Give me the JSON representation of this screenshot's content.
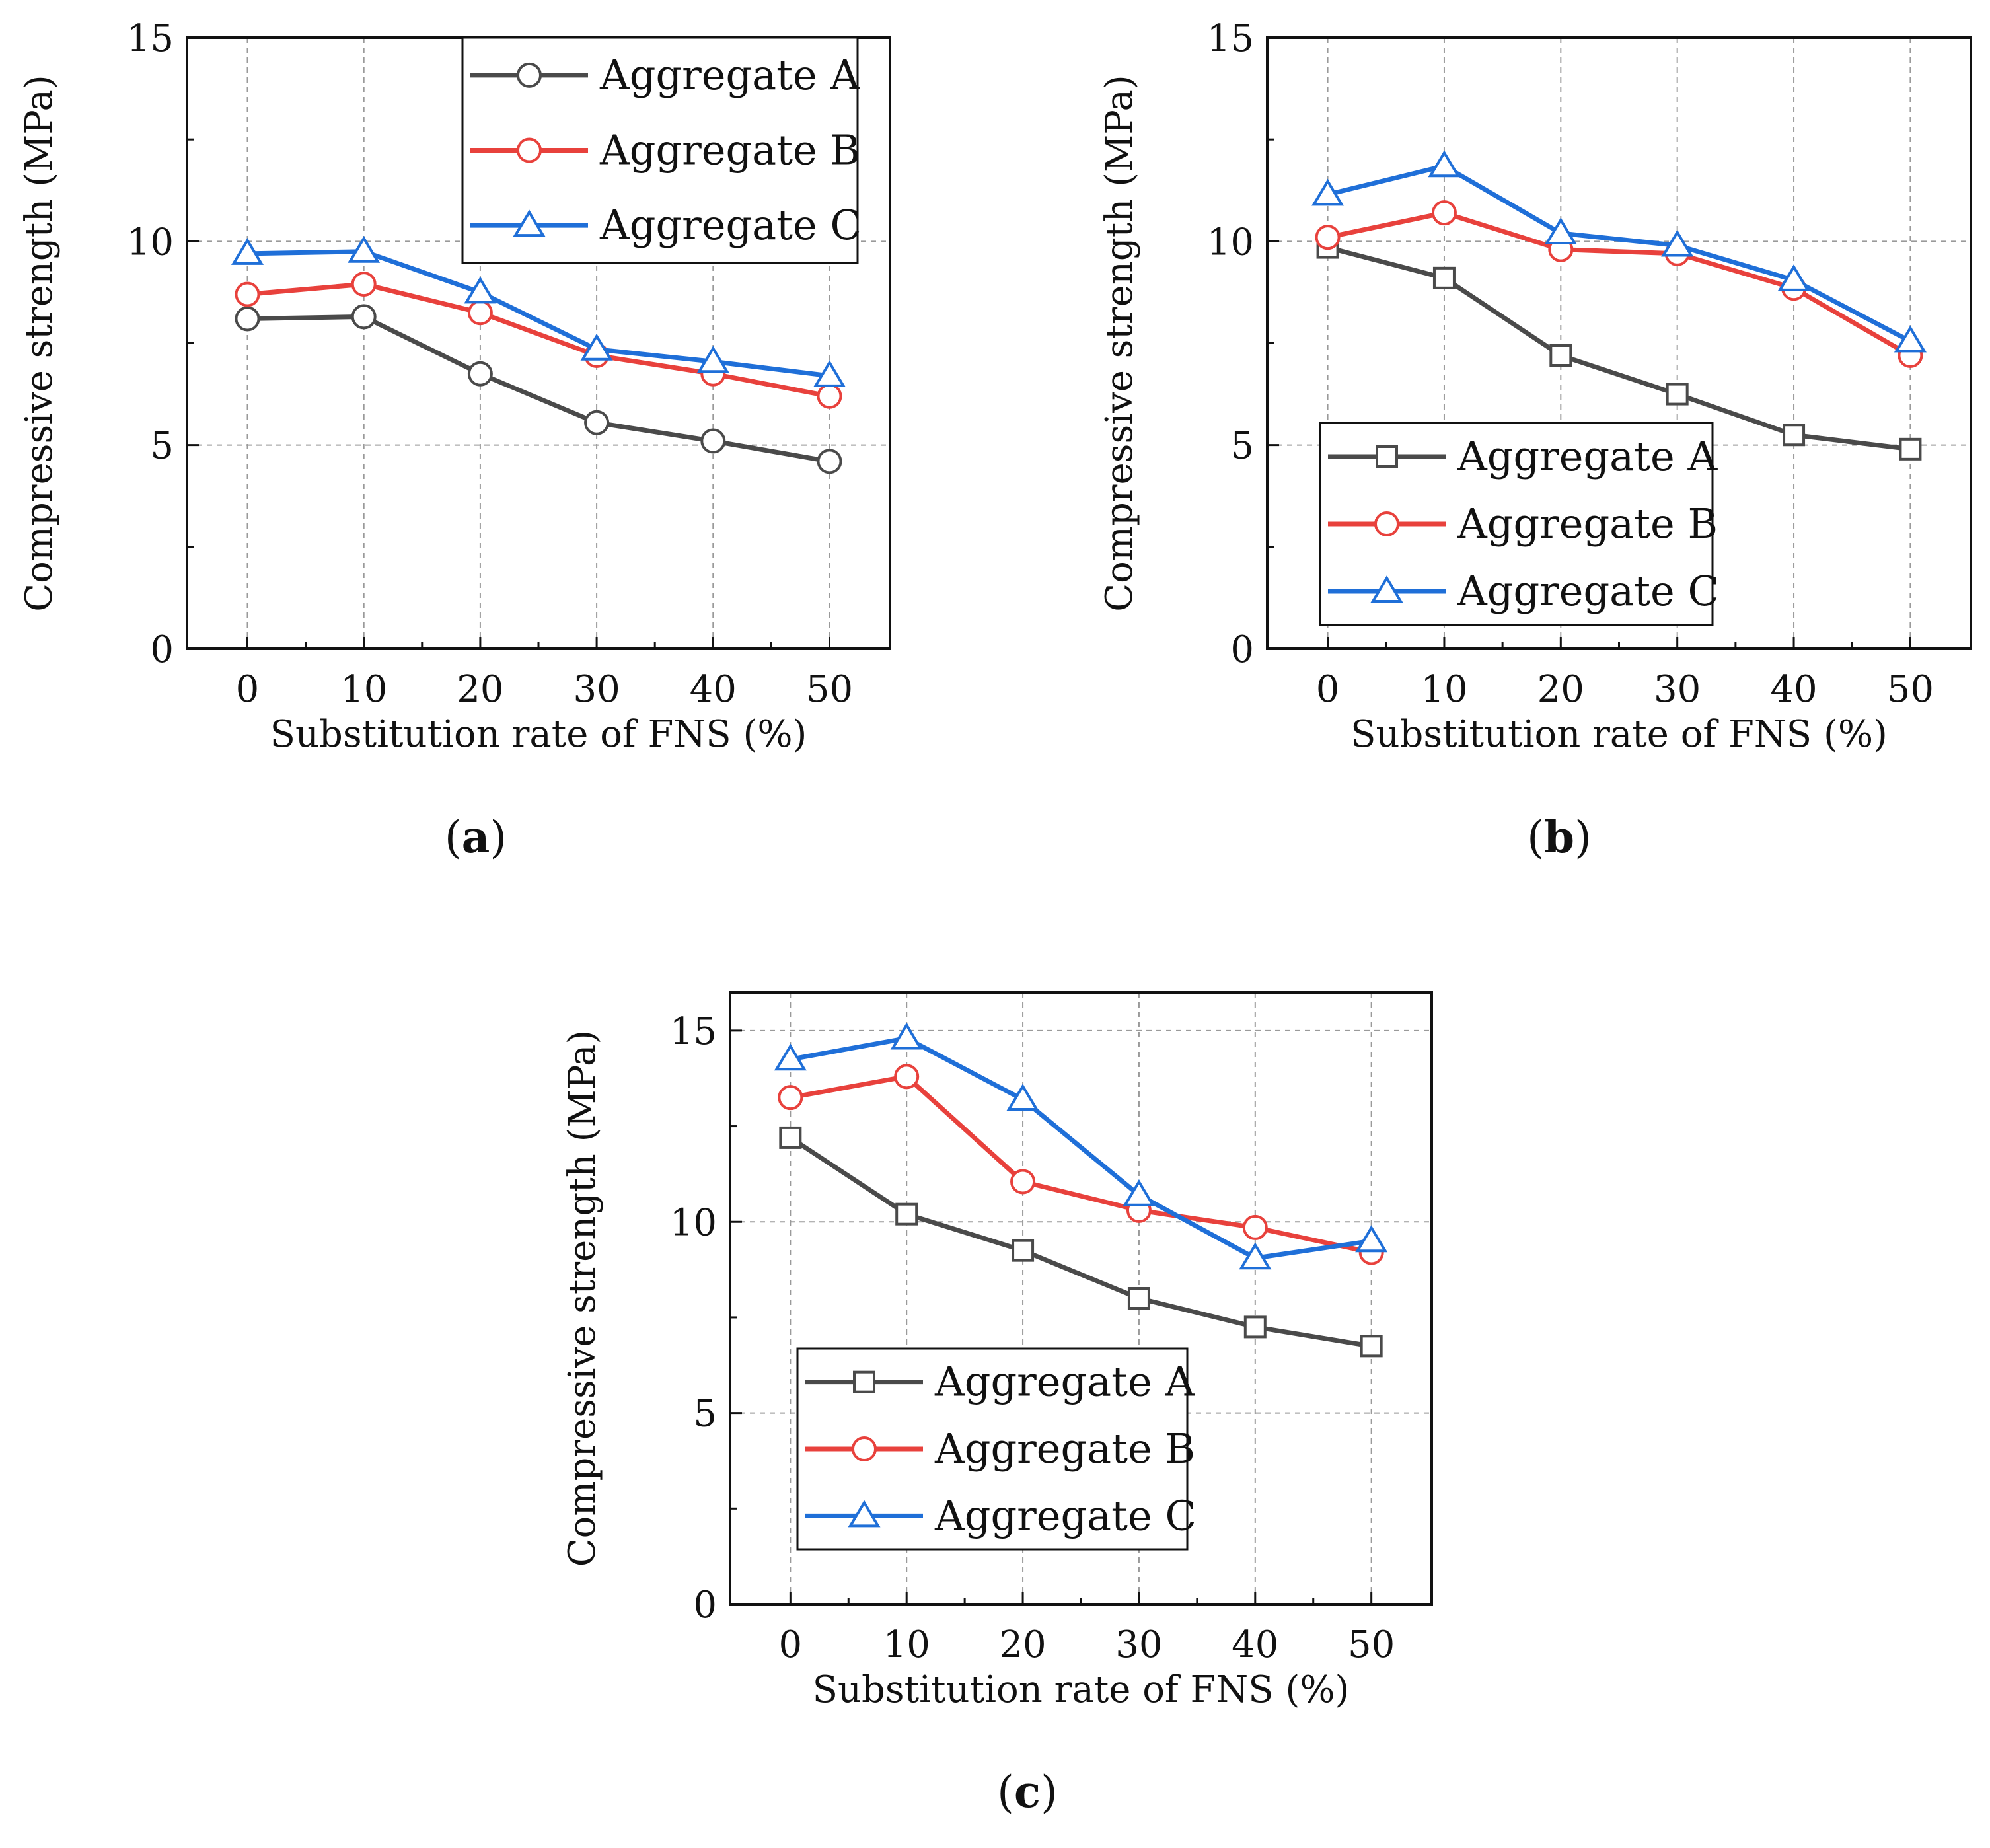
{
  "chart_data": [
    {
      "type": "line",
      "panel_label": "a",
      "xlabel": "Substitution rate of FNS (%)",
      "ylabel": "Compressive strength (MPa)",
      "x": [
        0,
        10,
        20,
        30,
        40,
        50
      ],
      "xticks": [
        "0",
        "10",
        "20",
        "30",
        "40",
        "50"
      ],
      "ylim": [
        0,
        15
      ],
      "yticks": [
        "0",
        "5",
        "10",
        "15"
      ],
      "grid": true,
      "legend_position": "top-right",
      "series": [
        {
          "name": "Aggregate A",
          "marker": "circle",
          "color": "#4a4a4a",
          "values": [
            8.1,
            8.15,
            6.75,
            5.55,
            5.1,
            4.6
          ]
        },
        {
          "name": "Aggregate B",
          "marker": "circle",
          "color": "#e8413c",
          "values": [
            8.7,
            8.95,
            8.25,
            7.2,
            6.75,
            6.2
          ]
        },
        {
          "name": "Aggregate C",
          "marker": "triangle",
          "color": "#1f6fd8",
          "values": [
            9.7,
            9.75,
            8.75,
            7.35,
            7.05,
            6.7
          ]
        }
      ]
    },
    {
      "type": "line",
      "panel_label": "b",
      "xlabel": "Substitution rate of FNS (%)",
      "ylabel": "Compressive strength (MPa)",
      "x": [
        0,
        10,
        20,
        30,
        40,
        50
      ],
      "xticks": [
        "0",
        "10",
        "20",
        "30",
        "40",
        "50"
      ],
      "ylim": [
        0,
        15
      ],
      "yticks": [
        "0",
        "5",
        "10",
        "15"
      ],
      "grid": true,
      "legend_position": "bottom-left",
      "series": [
        {
          "name": "Aggregate A",
          "marker": "square",
          "color": "#4a4a4a",
          "values": [
            9.85,
            9.1,
            7.2,
            6.25,
            5.25,
            4.9
          ]
        },
        {
          "name": "Aggregate B",
          "marker": "circle",
          "color": "#e8413c",
          "values": [
            10.1,
            10.7,
            9.8,
            9.7,
            8.85,
            7.2
          ]
        },
        {
          "name": "Aggregate C",
          "marker": "triangle",
          "color": "#1f6fd8",
          "values": [
            11.15,
            11.85,
            10.2,
            9.9,
            9.05,
            7.55
          ]
        }
      ]
    },
    {
      "type": "line",
      "panel_label": "c",
      "xlabel": "Substitution rate of FNS (%)",
      "ylabel": "Compressive strength (MPa)",
      "x": [
        0,
        10,
        20,
        30,
        40,
        50
      ],
      "xticks": [
        "0",
        "10",
        "20",
        "30",
        "40",
        "50"
      ],
      "ylim": [
        0,
        16
      ],
      "yticks": [
        "0",
        "5",
        "10",
        "15"
      ],
      "grid": true,
      "legend_position": "bottom-left",
      "series": [
        {
          "name": "Aggregate A",
          "marker": "square",
          "color": "#4a4a4a",
          "values": [
            12.2,
            10.2,
            9.25,
            8.0,
            7.25,
            6.75
          ]
        },
        {
          "name": "Aggregate B",
          "marker": "circle",
          "color": "#e8413c",
          "values": [
            13.25,
            13.8,
            11.05,
            10.3,
            9.85,
            9.2
          ]
        },
        {
          "name": "Aggregate C",
          "marker": "triangle",
          "color": "#1f6fd8",
          "values": [
            14.25,
            14.8,
            13.2,
            10.7,
            9.05,
            9.5
          ]
        }
      ]
    }
  ]
}
